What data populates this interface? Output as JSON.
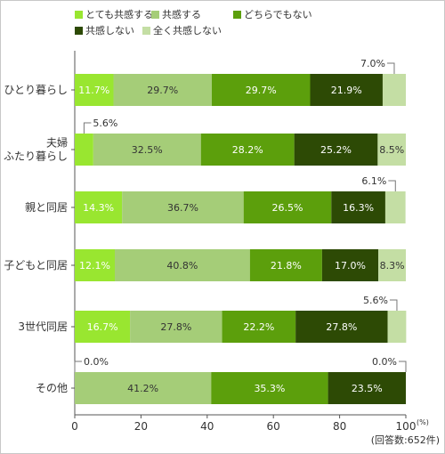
{
  "chart_data": {
    "type": "bar",
    "orientation": "horizontal",
    "stacked": true,
    "categories": [
      "ひとり暮らし",
      "夫婦\nふたり暮らし",
      "親と同居",
      "子どもと同居",
      "3世代同居",
      "その他"
    ],
    "series": [
      {
        "name": "とても共感する",
        "color": "#99e630",
        "values": [
          11.7,
          5.6,
          14.3,
          12.1,
          16.7,
          0.0
        ]
      },
      {
        "name": "共感する",
        "color": "#a5cd78",
        "values": [
          29.7,
          32.5,
          36.7,
          40.8,
          27.8,
          41.2
        ]
      },
      {
        "name": "どちらでもない",
        "color": "#5c9f0c",
        "values": [
          29.7,
          28.2,
          26.5,
          21.8,
          22.2,
          35.3
        ]
      },
      {
        "name": "共感しない",
        "color": "#2d4a05",
        "values": [
          21.9,
          25.2,
          16.3,
          17.0,
          27.8,
          23.5
        ]
      },
      {
        "name": "全く共感しない",
        "color": "#c4dea4",
        "values": [
          7.0,
          8.5,
          6.1,
          8.3,
          5.6,
          0.0
        ]
      }
    ],
    "xlim": [
      0,
      100
    ],
    "xticks": [
      0,
      20,
      40,
      60,
      80,
      100
    ],
    "xunit": "(%)",
    "note": "(回答数:652件)",
    "legend_position": "top-left"
  }
}
